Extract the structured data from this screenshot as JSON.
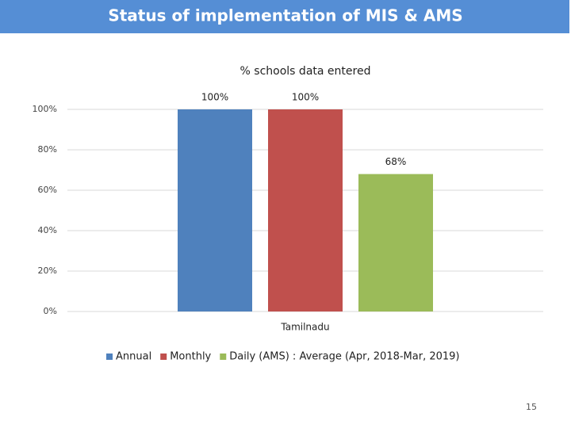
{
  "slide": {
    "title": "Status of implementation of MIS & AMS",
    "page_number": 15
  },
  "chart_data": {
    "type": "bar",
    "title": "% schools data entered",
    "categories": [
      "Tamilnadu"
    ],
    "series": [
      {
        "name": "Annual",
        "color": "#4f81bd",
        "values": [
          100
        ],
        "value_labels": [
          "100%"
        ]
      },
      {
        "name": "Monthly",
        "color": "#c0504d",
        "values": [
          100
        ],
        "value_labels": [
          "100%"
        ]
      },
      {
        "name": "Daily (AMS) : Average (Apr, 2018-Mar, 2019)",
        "color": "#9bbb59",
        "values": [
          68
        ],
        "value_labels": [
          "68%"
        ]
      }
    ],
    "ylim": [
      0,
      100
    ],
    "yticks": [
      {
        "value": 0,
        "label": "0%"
      },
      {
        "value": 20,
        "label": "20%"
      },
      {
        "value": 40,
        "label": "40%"
      },
      {
        "value": 60,
        "label": "60%"
      },
      {
        "value": 80,
        "label": "80%"
      },
      {
        "value": 100,
        "label": "100%"
      }
    ],
    "grid": true,
    "legend": "bottom"
  }
}
